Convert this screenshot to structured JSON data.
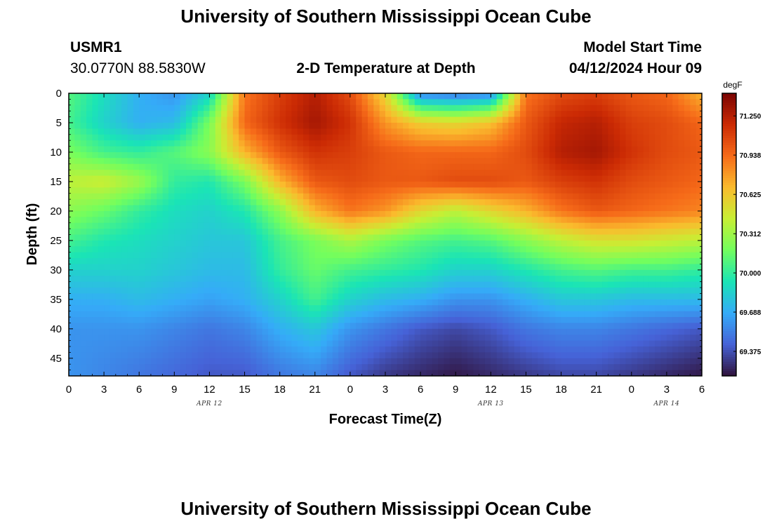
{
  "page": {
    "title": "University of Southern Mississippi Ocean Cube",
    "footer_title": "University of Southern Mississippi Ocean Cube"
  },
  "header": {
    "station_id": "USMR1",
    "coordinates": "30.0770N  88.5830W",
    "plot_title": "2-D Temperature at Depth",
    "model_start_label": "Model Start Time",
    "model_start_value": "04/12/2024 Hour 09"
  },
  "chart_data": {
    "type": "heatmap",
    "title": "2-D Temperature at Depth",
    "xlabel": "Forecast Time(Z)",
    "ylabel": "Depth (ft)",
    "x_hours_range": [
      0,
      54
    ],
    "y_range": [
      0,
      48
    ],
    "y_inverted": true,
    "x_tick_labels": [
      "0",
      "3",
      "6",
      "9",
      "12",
      "15",
      "18",
      "21",
      "0",
      "3",
      "6",
      "9",
      "12",
      "15",
      "18",
      "21",
      "0",
      "3",
      "6"
    ],
    "y_tick_labels": [
      "0",
      "5",
      "10",
      "15",
      "20",
      "25",
      "30",
      "35",
      "40",
      "45"
    ],
    "date_labels": [
      {
        "text": "APR 12",
        "hour": 12
      },
      {
        "text": "APR 13",
        "hour": 36
      },
      {
        "text": "APR 14",
        "hour": 51
      }
    ],
    "colorbar": {
      "unit": "degF",
      "min": 69.18,
      "max": 71.43,
      "tick_values": [
        "71.250",
        "70.938",
        "70.625",
        "70.312",
        "70.000",
        "69.688",
        "69.375"
      ],
      "colors": [
        "#30123b",
        "#4662d7",
        "#35abf8",
        "#1ae4b6",
        "#72fe5e",
        "#c7ef34",
        "#fabb2d",
        "#f66b19",
        "#cb2a04",
        "#7a0403"
      ]
    },
    "grid_depths_ft": [
      0,
      5,
      10,
      15,
      20,
      25,
      30,
      35,
      40,
      48
    ],
    "grid_hours": [
      0,
      3,
      6,
      9,
      12,
      15,
      18,
      21,
      24,
      27,
      30,
      33,
      36,
      39,
      42,
      45,
      48,
      51,
      54
    ],
    "temperature_degF": [
      [
        70.1,
        69.9,
        69.7,
        69.6,
        69.85,
        70.9,
        71.1,
        71.25,
        71.05,
        70.55,
        69.55,
        69.5,
        69.55,
        70.9,
        71.05,
        71.1,
        71.0,
        70.95,
        70.7
      ],
      [
        70.05,
        69.85,
        69.7,
        69.75,
        70.2,
        70.95,
        71.15,
        71.3,
        71.15,
        70.8,
        70.6,
        70.55,
        70.65,
        71.0,
        71.2,
        71.25,
        71.1,
        71.05,
        70.95
      ],
      [
        70.2,
        70.05,
        70.0,
        70.1,
        70.25,
        70.7,
        71.0,
        71.15,
        71.1,
        71.0,
        70.95,
        70.95,
        70.95,
        71.05,
        71.25,
        71.3,
        71.15,
        71.05,
        71.0
      ],
      [
        70.4,
        70.45,
        70.3,
        70.0,
        69.95,
        70.2,
        70.7,
        71.0,
        71.05,
        71.0,
        71.0,
        71.05,
        71.05,
        71.0,
        71.1,
        71.15,
        71.05,
        71.0,
        70.95
      ],
      [
        70.25,
        70.15,
        70.0,
        69.9,
        69.85,
        69.95,
        70.25,
        70.7,
        70.9,
        70.8,
        70.55,
        70.4,
        70.55,
        70.7,
        70.9,
        71.0,
        70.95,
        70.9,
        70.85
      ],
      [
        70.05,
        69.95,
        69.9,
        69.85,
        69.8,
        69.8,
        70.05,
        70.2,
        70.35,
        70.2,
        70.1,
        70.05,
        70.1,
        70.25,
        70.4,
        70.5,
        70.5,
        70.45,
        70.4
      ],
      [
        69.85,
        69.85,
        69.85,
        69.8,
        69.75,
        69.75,
        70.0,
        70.15,
        70.05,
        70.0,
        69.95,
        69.85,
        69.85,
        69.95,
        70.05,
        70.1,
        70.05,
        70.05,
        70.0
      ],
      [
        69.7,
        69.7,
        69.75,
        69.7,
        69.65,
        69.7,
        69.85,
        70.05,
        69.85,
        69.75,
        69.7,
        69.6,
        69.6,
        69.7,
        69.8,
        69.8,
        69.75,
        69.75,
        69.75
      ],
      [
        69.6,
        69.6,
        69.6,
        69.55,
        69.5,
        69.55,
        69.7,
        69.8,
        69.6,
        69.5,
        69.4,
        69.35,
        69.4,
        69.5,
        69.55,
        69.55,
        69.5,
        69.45,
        69.4
      ],
      [
        69.6,
        69.55,
        69.5,
        69.45,
        69.4,
        69.4,
        69.5,
        69.55,
        69.4,
        69.3,
        69.25,
        69.2,
        69.25,
        69.3,
        69.35,
        69.35,
        69.3,
        69.25,
        69.2
      ]
    ]
  }
}
